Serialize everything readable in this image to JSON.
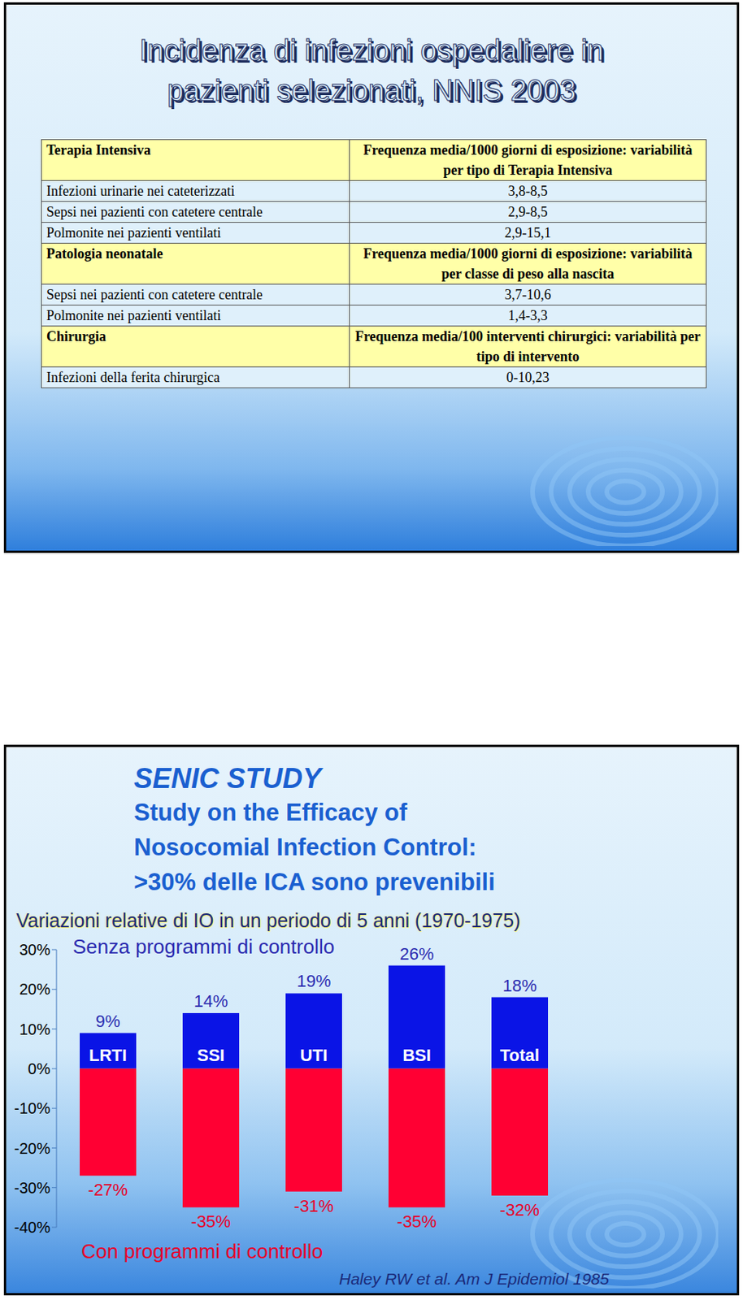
{
  "table_slide": {
    "title_lines": [
      "Incidenza di infezioni ospedaliere in",
      "pazienti selezionati, NNIS 2003"
    ],
    "sections": [
      {
        "name": "Terapia Intensiva",
        "measure": "Frequenza media/1000 giorni di esposizione: variabilità per tipo di Terapia Intensiva",
        "rows": [
          [
            "Infezioni urinarie nei cateterizzati",
            "3,8-8,5"
          ],
          [
            "Sepsi nei pazienti con catetere centrale",
            "2,9-8,5"
          ],
          [
            "Polmonite nei pazienti ventilati",
            "2,9-15,1"
          ]
        ]
      },
      {
        "name": "Patologia neonatale",
        "measure": "Frequenza media/1000 giorni di esposizione: variabilità per classe di peso alla nascita",
        "rows": [
          [
            "Sepsi nei pazienti con catetere centrale",
            "3,7-10,6"
          ],
          [
            "Polmonite nei pazienti ventilati",
            "1,4-3,3"
          ]
        ]
      },
      {
        "name": "Chirurgia",
        "measure": "Frequenza media/100 interventi chirurgici: variabilità per tipo di intervento",
        "rows": [
          [
            "Infezioni della ferita chirurgica",
            "0-10,23"
          ]
        ]
      }
    ]
  },
  "chart_data": {
    "type": "bar",
    "title": "SENIC STUDY",
    "subtitle": [
      "Study on the Efficacy of",
      "Nosocomial Infection Control:",
      ">30% delle ICA sono prevenibili"
    ],
    "annotations": [
      "Variazioni relative di IO in un periodo di 5 anni (1970-1975)"
    ],
    "source": "Haley RW et al. Am J Epidemiol 1985",
    "categories": [
      "LRTI",
      "SSI",
      "UTI",
      "BSI",
      "Total"
    ],
    "series": [
      {
        "name": "Senza programmi di controllo",
        "color": "#0a14e6",
        "values": [
          9,
          14,
          19,
          26,
          18
        ],
        "value_labels": [
          "9%",
          "14%",
          "19%",
          "26%",
          "18%"
        ]
      },
      {
        "name": "Con programmi di controllo",
        "color": "#ff0033",
        "values": [
          -27,
          -35,
          -31,
          -35,
          -32
        ],
        "value_labels": [
          "-27%",
          "-35%",
          "-31%",
          "-35%",
          "-32%"
        ]
      }
    ],
    "ylim": [
      -40,
      30
    ],
    "yticks": [
      {
        "value": 30,
        "label": "30%"
      },
      {
        "value": 20,
        "label": "20%"
      },
      {
        "value": 10,
        "label": "10%"
      },
      {
        "value": 0,
        "label": "0%"
      },
      {
        "value": -10,
        "label": "-10%"
      },
      {
        "value": -20,
        "label": "-20%"
      },
      {
        "value": -30,
        "label": "-30%"
      },
      {
        "value": -40,
        "label": "-40%"
      }
    ],
    "stacked": true,
    "data_labels": true,
    "grid": false
  }
}
